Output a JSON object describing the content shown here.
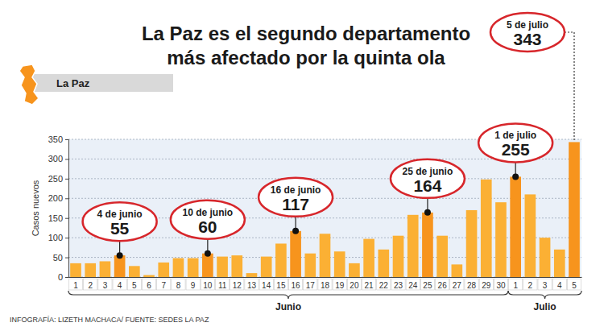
{
  "chart_data": {
    "type": "bar",
    "title": "La Paz es el segundo departamento más afectado por la quinta ola",
    "subtitle": "La Paz",
    "y_label": "Casos nuevos",
    "source": "INFOGRAFÍA: LIZETH MACHACA/ FUENTE: SEDES LA PAZ",
    "categories": [
      "1",
      "2",
      "3",
      "4",
      "5",
      "6",
      "7",
      "8",
      "9",
      "10",
      "11",
      "12",
      "13",
      "14",
      "15",
      "16",
      "17",
      "18",
      "19",
      "20",
      "21",
      "22",
      "23",
      "24",
      "25",
      "26",
      "27",
      "28",
      "29",
      "30",
      "1",
      "2",
      "3",
      "4",
      "5"
    ],
    "values": [
      35,
      35,
      40,
      55,
      28,
      5,
      37,
      48,
      48,
      60,
      52,
      55,
      10,
      52,
      85,
      117,
      60,
      110,
      65,
      35,
      97,
      70,
      105,
      158,
      164,
      105,
      32,
      170,
      248,
      190,
      255,
      210,
      100,
      70,
      343
    ],
    "colors": [
      "#fbb034",
      "#fbb034",
      "#fbb034",
      "#f7941d",
      "#fbb034",
      "#fbb034",
      "#fbb034",
      "#fbb034",
      "#fbb034",
      "#f7941d",
      "#fbb034",
      "#fbb034",
      "#fbb034",
      "#fbb034",
      "#fbb034",
      "#f7941d",
      "#fbb034",
      "#fbb034",
      "#fbb034",
      "#fbb034",
      "#fbb034",
      "#fbb034",
      "#fbb034",
      "#fbb034",
      "#f7941d",
      "#fbb034",
      "#fbb034",
      "#fbb034",
      "#fbb034",
      "#fbb034",
      "#f7941d",
      "#fbb034",
      "#fbb034",
      "#fbb034",
      "#f7941d"
    ],
    "groups": [
      {
        "label": "Junio",
        "start": 0,
        "end": 29
      },
      {
        "label": "Julio",
        "start": 30,
        "end": 34
      }
    ],
    "annotations": [
      {
        "text": "4 de junio",
        "index": 3
      },
      {
        "text": "10 de junio",
        "index": 9
      },
      {
        "text": "16 de junio",
        "index": 15
      },
      {
        "text": "25 de junio",
        "index": 24
      },
      {
        "text": "1 de julio",
        "index": 30
      },
      {
        "text": "5 de julio",
        "index": 34
      }
    ],
    "ylim": [
      0,
      350
    ],
    "yticks": [
      0,
      50,
      100,
      150,
      200,
      250,
      300,
      350
    ],
    "grid": true
  }
}
